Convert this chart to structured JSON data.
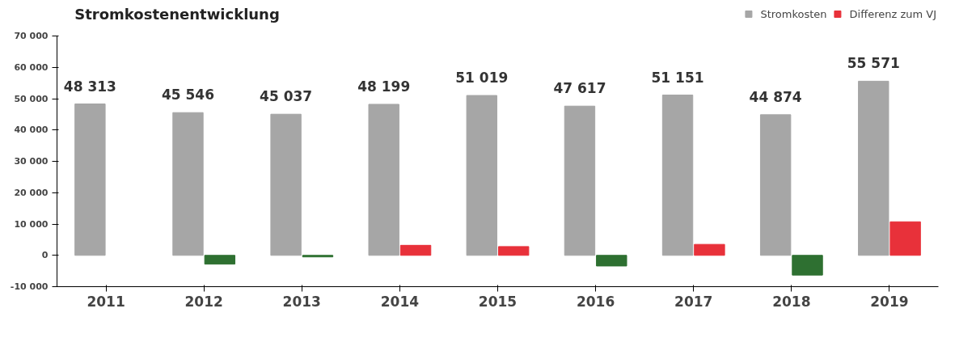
{
  "chart_data": {
    "type": "bar",
    "title": "Stromkostenentwicklung",
    "categories": [
      "2011",
      "2012",
      "2013",
      "2014",
      "2015",
      "2016",
      "2017",
      "2018",
      "2019"
    ],
    "series": [
      {
        "name": "Stromkosten",
        "color": "#a6a6a6",
        "values": [
          48313,
          45546,
          45037,
          48199,
          51019,
          47617,
          51151,
          44874,
          55571
        ],
        "value_labels": [
          "48 313",
          "45 546",
          "45 037",
          "48 199",
          "51 019",
          "47 617",
          "51 151",
          "44 874",
          "55 571"
        ]
      },
      {
        "name": "Differenz zum VJ",
        "color": "#e8313a",
        "colors": [
          null,
          "#2e7031",
          "#2e7031",
          "#e8313a",
          "#e8313a",
          "#2e7031",
          "#e8313a",
          "#2e7031",
          "#e8313a"
        ],
        "values": [
          null,
          -2800,
          -500,
          3200,
          2800,
          -3400,
          3500,
          -6300,
          10700
        ]
      }
    ],
    "ylim": [
      -10000,
      70000
    ],
    "yticks": [
      {
        "value": -10000,
        "label": "-10 000"
      },
      0,
      {
        "value": 10000,
        "label": "10 000"
      },
      {
        "value": 20000,
        "label": "20 000"
      },
      {
        "value": 30000,
        "label": "30 000"
      },
      {
        "value": 40000,
        "label": "40 000"
      },
      {
        "value": 50000,
        "label": "50 000"
      },
      {
        "value": 60000,
        "label": "60 000"
      },
      {
        "value": 70000,
        "label": "70 000"
      }
    ],
    "legend": "top right",
    "grid": false
  }
}
